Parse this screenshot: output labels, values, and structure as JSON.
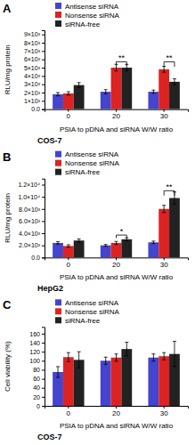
{
  "chart_data": [
    {
      "type": "bar",
      "title": "A",
      "subtitle": "COS-7",
      "xlabel": "PSIA to pDNA and siRNA W/W ratio",
      "ylabel": "RLU/mg protein",
      "categories": [
        "0",
        "20",
        "30"
      ],
      "series": [
        {
          "name": "Antisense siRNA",
          "color": "#4444CC",
          "values": [
            1800,
            2100,
            2100
          ],
          "errors": [
            200,
            250,
            200
          ]
        },
        {
          "name": "Nonsense siRNA",
          "color": "#DD2222",
          "values": [
            1900,
            5000,
            4800
          ],
          "errors": [
            200,
            400,
            350
          ]
        },
        {
          "name": "siRNA-free",
          "color": "#222222",
          "values": [
            2900,
            5000,
            3300
          ],
          "errors": [
            300,
            400,
            350
          ]
        }
      ],
      "ylim": [
        0,
        9500
      ],
      "yticks": [
        {
          "value": 0,
          "label": "0.0"
        },
        {
          "value": 1000,
          "label": "1×10³"
        },
        {
          "value": 2000,
          "label": "2×10³"
        },
        {
          "value": 3000,
          "label": "3×10³"
        },
        {
          "value": 4000,
          "label": "4×10³"
        },
        {
          "value": 5000,
          "label": "5×10³"
        },
        {
          "value": 6000,
          "label": "6×10³"
        },
        {
          "value": 7000,
          "label": "7×10³"
        },
        {
          "value": 8000,
          "label": "8×10³"
        },
        {
          "value": 9000,
          "label": "9×10³"
        }
      ],
      "annotations": [
        {
          "text": "**",
          "x": "20",
          "from": "Nonsense siRNA",
          "to": "siRNA-free",
          "y": 5700,
          "y_start": 5200
        },
        {
          "text": "**",
          "x": "30",
          "from": "Nonsense siRNA",
          "to": "siRNA-free",
          "y": 5700,
          "y_start": 5100
        }
      ],
      "legend": "top",
      "grid": false
    },
    {
      "type": "bar",
      "title": "B",
      "subtitle": "HepG2",
      "xlabel": "PSIA to pDNA and siRNA W/W ratio",
      "ylabel": "RLU/mg protein",
      "categories": [
        "0",
        "20",
        "30"
      ],
      "series": [
        {
          "name": "Antisense siRNA",
          "color": "#4444CC",
          "values": [
            2400,
            2000,
            2500
          ],
          "errors": [
            200,
            150,
            200
          ]
        },
        {
          "name": "Nonsense siRNA",
          "color": "#DD2222",
          "values": [
            1900,
            2400,
            8000
          ],
          "errors": [
            200,
            250,
            600
          ]
        },
        {
          "name": "siRNA-free",
          "color": "#222222",
          "values": [
            2800,
            3000,
            9800
          ],
          "errors": [
            250,
            250,
            1000
          ]
        }
      ],
      "ylim": [
        0,
        13000
      ],
      "yticks": [
        {
          "value": 0,
          "label": "0.0"
        },
        {
          "value": 2000,
          "label": "2.0×10³"
        },
        {
          "value": 4000,
          "label": "4.0×10³"
        },
        {
          "value": 6000,
          "label": "6.0×10³"
        },
        {
          "value": 8000,
          "label": "8.0×10³"
        },
        {
          "value": 10000,
          "label": "1.0×10⁴"
        },
        {
          "value": 12000,
          "label": "1.2×10⁴"
        }
      ],
      "annotations": [
        {
          "text": "*",
          "x": "20",
          "from": "Nonsense siRNA",
          "to": "siRNA-free",
          "y": 3700,
          "y_start": 3200
        },
        {
          "text": "**",
          "x": "30",
          "from": "Nonsense siRNA",
          "to": "siRNA-free",
          "y": 11000,
          "y_start": 10200
        }
      ],
      "legend": "top",
      "grid": false
    },
    {
      "type": "bar",
      "title": "C",
      "subtitle": "COS-7",
      "xlabel": "PSIA to pDNA and siRNA W/W ratio",
      "ylabel": "Cell viability (%)",
      "categories": [
        "0",
        "20",
        "30"
      ],
      "series": [
        {
          "name": "Antisense siRNA",
          "color": "#4444CC",
          "values": [
            75,
            100,
            107
          ],
          "errors": [
            12,
            8,
            8
          ]
        },
        {
          "name": "Nonsense siRNA",
          "color": "#DD2222",
          "values": [
            108,
            107,
            110
          ],
          "errors": [
            10,
            8,
            8
          ]
        },
        {
          "name": "siRNA-free",
          "color": "#222222",
          "values": [
            102,
            126,
            115
          ],
          "errors": [
            18,
            15,
            28
          ]
        }
      ],
      "ylim": [
        0,
        175
      ],
      "yticks": [
        0,
        20,
        40,
        60,
        80,
        100,
        120,
        140,
        160
      ],
      "legend": "top",
      "grid": false
    }
  ]
}
